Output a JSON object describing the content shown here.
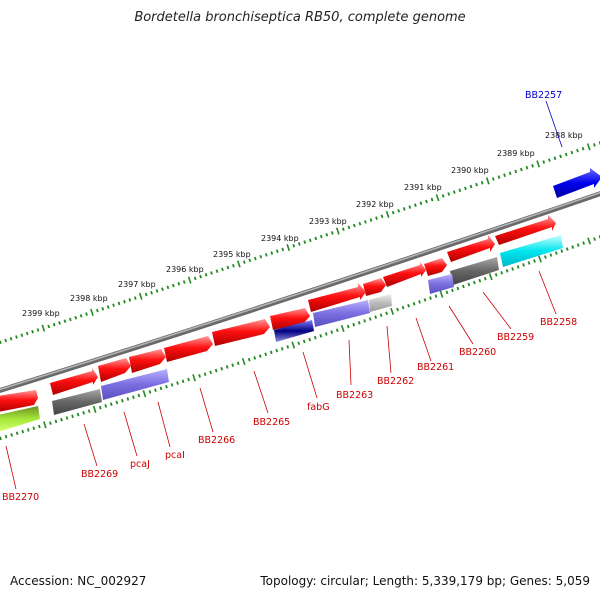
{
  "title": "Bordetella bronchiseptica RB50, complete genome",
  "footer": {
    "accession": "Accession: NC_002927",
    "summary": "Topology: circular; Length: 5,339,179 bp; Genes: 5,059"
  },
  "colors": {
    "forward_gene": "#ee0000",
    "reverse_gene_gray": "#666666",
    "reverse_gene_purple": "#7a6ee0",
    "cyan_gene": "#00e5ee",
    "blue_gene": "#0000ee",
    "green_gene": "#a6e83a",
    "backbone": "#8a8a8a",
    "tick": "#228b22",
    "label_red": "#cc0000",
    "label_blue": "#0000cc"
  },
  "scale_labels": [
    "2388 kbp",
    "2389 kbp",
    "2390 kbp",
    "2391 kbp",
    "2392 kbp",
    "2393 kbp",
    "2394 kbp",
    "2395 kbp",
    "2396 kbp",
    "2397 kbp",
    "2398 kbp",
    "2399 kbp"
  ],
  "gene_labels": [
    {
      "name": "BB2257",
      "color": "blue"
    },
    {
      "name": "BB2258",
      "color": "red"
    },
    {
      "name": "BB2259",
      "color": "red"
    },
    {
      "name": "BB2260",
      "color": "red"
    },
    {
      "name": "BB2261",
      "color": "red"
    },
    {
      "name": "BB2262",
      "color": "red"
    },
    {
      "name": "BB2263",
      "color": "red"
    },
    {
      "name": "fabG",
      "color": "red"
    },
    {
      "name": "BB2265",
      "color": "red"
    },
    {
      "name": "BB2266",
      "color": "red"
    },
    {
      "name": "pcaI",
      "color": "red"
    },
    {
      "name": "pcaJ",
      "color": "red"
    },
    {
      "name": "BB2269",
      "color": "red"
    },
    {
      "name": "BB2270",
      "color": "red"
    }
  ]
}
